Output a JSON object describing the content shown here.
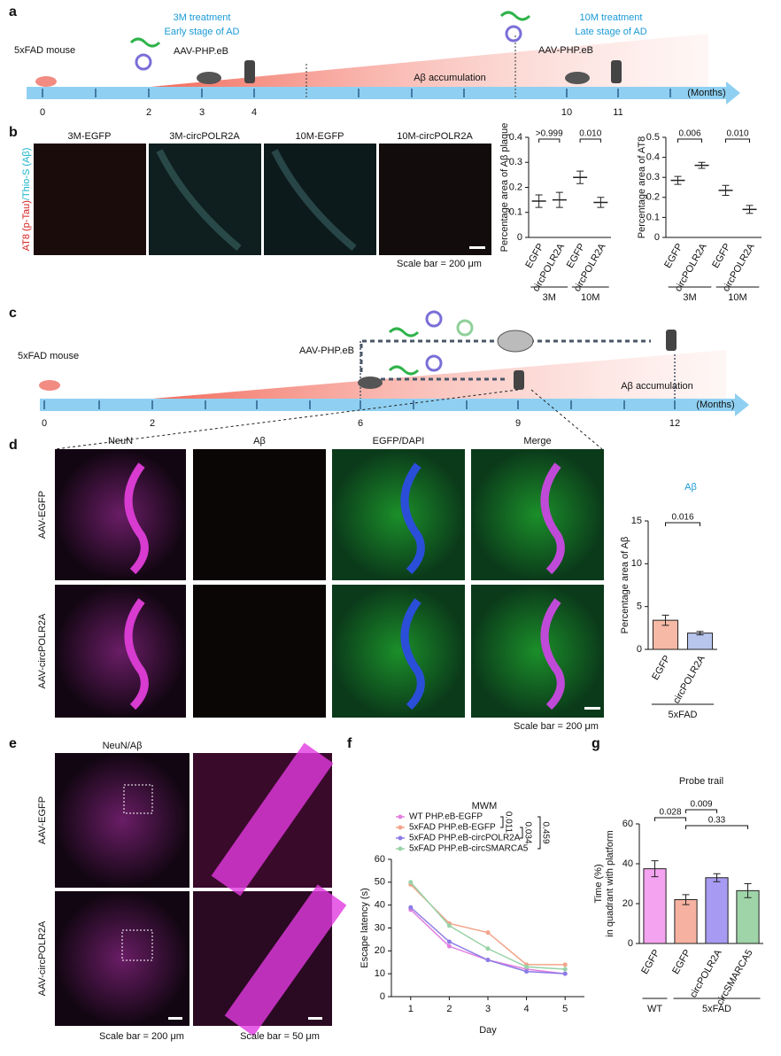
{
  "panels": {
    "a": {
      "letter": "a",
      "mouse": "5xFAD mouse",
      "early_title": "3M treatment",
      "early_sub": "Early stage of AD",
      "aav1": "AAV-PHP.eB",
      "late_title": "10M treatment",
      "late_sub": "Late stage of AD",
      "aav2": "AAV-PHP.eB",
      "accumulation": "Aβ accumulation",
      "unit": "(Months)",
      "ticks": [
        "0",
        "2",
        "3",
        "4",
        "10",
        "11"
      ]
    },
    "b": {
      "letter": "b",
      "images": [
        "3M-EGFP",
        "3M-circPOLR2A",
        "10M-EGFP",
        "10M-circPOLR2A"
      ],
      "stain_red": "AT8 (p-Tau)",
      "stain_cyan": "/Thio-S (Aβ)",
      "scale": "Scale bar = 200 μm"
    },
    "c": {
      "letter": "c",
      "mouse": "5xFAD mouse",
      "aav": "AAV-PHP.eB",
      "accumulation": "Aβ accumulation",
      "unit": "(Months)",
      "ticks": [
        "0",
        "2",
        "6",
        "9",
        "12"
      ]
    },
    "d": {
      "letter": "d",
      "columns": [
        "NeuN",
        "Aβ",
        "EGFP/DAPI",
        "Merge"
      ],
      "rows": [
        "AAV-EGFP",
        "AAV-circPOLR2A"
      ],
      "scale": "Scale bar = 200 μm"
    },
    "e": {
      "letter": "e",
      "stain": "NeuN/Aβ",
      "rows": [
        "AAV-EGFP",
        "AAV-circPOLR2A"
      ],
      "scale1": "Scale bar = 200 μm",
      "scale2": "Scale bar = 50 μm"
    },
    "f": {
      "letter": "f"
    },
    "g": {
      "letter": "g"
    }
  },
  "chart_data": [
    {
      "type": "strip",
      "ylabel": "Percentage area of Aβ plaque",
      "categories": [
        "EGFP",
        "circPOLR2A",
        "EGFP",
        "circPOLR2A"
      ],
      "values": [
        0.145,
        0.15,
        0.24,
        0.14
      ],
      "errors": [
        0.025,
        0.03,
        0.025,
        0.02
      ],
      "colors": [
        "#f4a98a",
        "#a9b4e8",
        "#f08a4b",
        "#6f78d8"
      ],
      "ylim": [
        0,
        0.4
      ],
      "yticks": [
        0,
        0.1,
        0.2,
        0.3,
        0.4
      ],
      "groups": [
        "3M",
        "10M"
      ],
      "comparisons": [
        ">0.999",
        "0.010"
      ]
    },
    {
      "type": "strip",
      "ylabel": "Percentage area of AT8",
      "categories": [
        "EGFP",
        "circPOLR2A",
        "EGFP",
        "circPOLR2A"
      ],
      "values": [
        0.285,
        0.36,
        0.235,
        0.14
      ],
      "errors": [
        0.02,
        0.015,
        0.025,
        0.02
      ],
      "colors": [
        "#f4a98a",
        "#a9b4e8",
        "#f08a4b",
        "#6f78d8"
      ],
      "ylim": [
        0,
        0.5
      ],
      "yticks": [
        0,
        0.1,
        0.2,
        0.3,
        0.4,
        0.5
      ],
      "groups": [
        "3M",
        "10M"
      ],
      "comparisons": [
        "0.006",
        "0.010"
      ]
    },
    {
      "type": "bar",
      "title": "Aβ",
      "ylabel": "Percentage area of Aβ",
      "categories": [
        "EGFP",
        "circPOLR2A"
      ],
      "values": [
        3.4,
        1.9
      ],
      "errors": [
        0.6,
        0.2
      ],
      "colors": [
        "#f6b9a5",
        "#b8c6ee"
      ],
      "ylim": [
        0,
        15
      ],
      "yticks": [
        0,
        5,
        10,
        15
      ],
      "groups": [
        "5xFAD"
      ],
      "comparisons": [
        "0.016"
      ]
    },
    {
      "type": "line",
      "title": "MWM",
      "xlabel": "Day",
      "ylabel": "Escape latency (s)",
      "x": [
        1,
        2,
        3,
        4,
        5
      ],
      "xlim": [
        0.5,
        5.5
      ],
      "xticks": [
        1,
        2,
        3,
        4,
        5
      ],
      "ylim": [
        0,
        60
      ],
      "yticks": [
        0,
        10,
        20,
        30,
        40,
        50,
        60
      ],
      "series": [
        {
          "name": "WT PHP.eB-EGFP",
          "color": "#e27fe0",
          "values": [
            38,
            22,
            16,
            12,
            10
          ]
        },
        {
          "name": "5xFAD PHP.eB-EGFP",
          "color": "#f2a48a",
          "values": [
            49,
            32,
            28,
            14,
            14
          ]
        },
        {
          "name": "5xFAD PHP.eB-circPOLR2A",
          "color": "#8b7ce6",
          "values": [
            39,
            24,
            16,
            11,
            10
          ]
        },
        {
          "name": "5xFAD PHP.eB-circSMARCA5",
          "color": "#98d2a6",
          "values": [
            50,
            31,
            21,
            13,
            12
          ]
        }
      ],
      "comparisons": [
        "0.011",
        "0.034",
        "0.459"
      ]
    },
    {
      "type": "bar",
      "title": "Probe trail",
      "ylabel": [
        "Time (%)",
        "in quadrant with platform"
      ],
      "categories": [
        "EGFP",
        "EGFP",
        "circPOLR2A",
        "circSMARCA5"
      ],
      "values": [
        37.5,
        22,
        33,
        26.5
      ],
      "errors": [
        4,
        2.5,
        2,
        3.5
      ],
      "colors": [
        "#f3a3ef",
        "#f6b1a0",
        "#a79af2",
        "#9ed4a8"
      ],
      "ylim": [
        0,
        60
      ],
      "yticks": [
        0,
        20,
        40,
        60
      ],
      "groups": [
        "WT",
        "5xFAD"
      ],
      "comparisons": [
        "0.028",
        "0.009",
        "0.33"
      ]
    }
  ]
}
